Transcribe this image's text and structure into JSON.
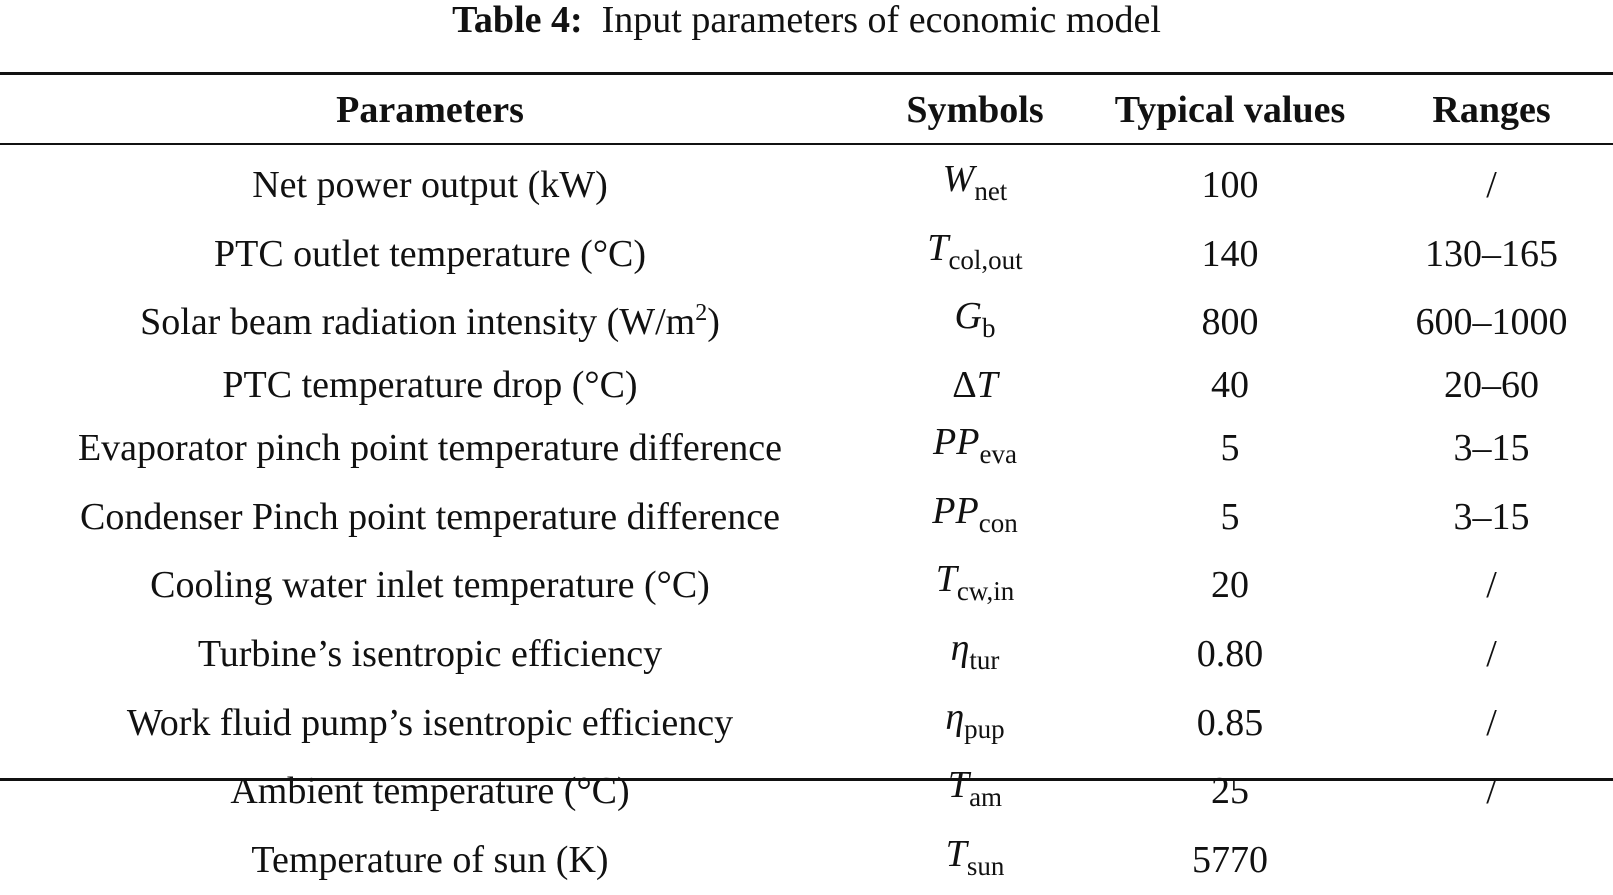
{
  "caption": {
    "label": "Table 4:",
    "text": "Input parameters of economic model"
  },
  "table": {
    "headers": [
      "Parameters",
      "Symbols",
      "Typical values",
      "Ranges"
    ],
    "rows": [
      {
        "parameter": "Net power output (kW)",
        "symbol": "W",
        "symbol_sub": "net",
        "value": "100",
        "range": "/"
      },
      {
        "parameter": "PTC outlet temperature (°C)",
        "symbol": "T",
        "symbol_sub": "col,out",
        "value": "140",
        "range": "130–165"
      },
      {
        "parameter_pre": "Solar beam radiation intensity (W/m",
        "parameter_sup": "2",
        "parameter_post": ")",
        "symbol": "G",
        "symbol_sub": "b",
        "value": "800",
        "range": "600–1000"
      },
      {
        "parameter": "PTC temperature drop (°C)",
        "symbol_prefix": "Δ",
        "symbol": "T",
        "symbol_sub": "",
        "value": "40",
        "range": "20–60"
      },
      {
        "parameter": "Evaporator pinch point temperature difference",
        "symbol": "PP",
        "symbol_sub": "eva",
        "value": "5",
        "range": "3–15"
      },
      {
        "parameter": "Condenser Pinch point temperature difference",
        "symbol": "PP",
        "symbol_sub": "con",
        "value": "5",
        "range": "3–15"
      },
      {
        "parameter": "Cooling water inlet temperature (°C)",
        "symbol": "T",
        "symbol_sub": "cw,in",
        "value": "20",
        "range": "/"
      },
      {
        "parameter": "Turbine’s isentropic efficiency",
        "symbol": "η",
        "symbol_sub": "tur",
        "value": "0.80",
        "range": "/"
      },
      {
        "parameter": "Work fluid pump’s isentropic efficiency",
        "symbol": "η",
        "symbol_sub": "pup",
        "value": "0.85",
        "range": "/"
      },
      {
        "parameter": "Ambient temperature (°C)",
        "symbol": "T",
        "symbol_sub": "am",
        "value": "25",
        "range": "/"
      },
      {
        "parameter": "Temperature of sun (K)",
        "symbol": "T",
        "symbol_sub": "sun",
        "value": "5770",
        "range": ""
      }
    ]
  }
}
